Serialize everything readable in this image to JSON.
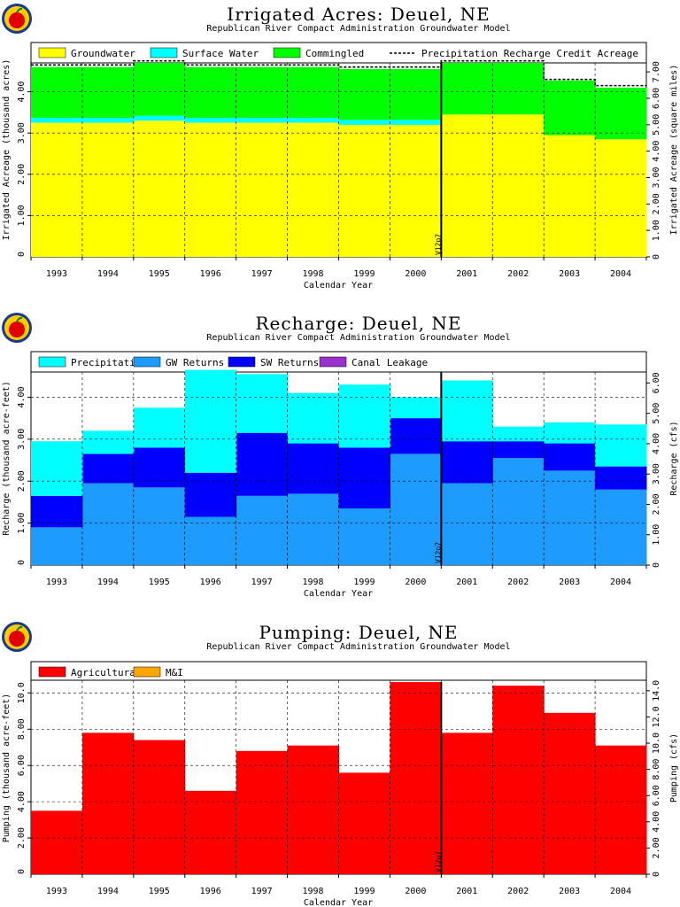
{
  "logo_icon": "apple-logo-icon",
  "charts": [
    {
      "title": "Irrigated Acres: Deuel, NE",
      "subtitle": "Republican River Compact Administration Groundwater Model",
      "xlabel": "Calendar Year",
      "ylabel": "Irrigated Acreage (thousand acres)",
      "ylabel_right": "Irrigated Acreage (square miles)",
      "marker_label": "V12p7",
      "legend": [
        "Groundwater",
        "Surface Water",
        "Commingled",
        "Precipitation Recharge Credit Acreage"
      ]
    },
    {
      "title": "Recharge: Deuel, NE",
      "subtitle": "Republican River Compact Administration Groundwater Model",
      "xlabel": "Calendar Year",
      "ylabel": "Recharge (thousand acre-feet)",
      "ylabel_right": "Recharge (cfs)",
      "marker_label": "V12p7",
      "legend": [
        "Precipitation",
        "GW Returns",
        "SW Returns",
        "Canal Leakage"
      ]
    },
    {
      "title": "Pumping: Deuel, NE",
      "subtitle": "Republican River Compact Administration Groundwater Model",
      "xlabel": "Calendar Year",
      "ylabel": "Pumping (thousand acre-feet)",
      "ylabel_right": "Pumping (cfs)",
      "marker_label": "V12p7",
      "legend": [
        "Agricultural",
        "M&I"
      ]
    }
  ],
  "chart_data": [
    {
      "type": "area",
      "stacked": true,
      "title": "Irrigated Acres: Deuel, NE",
      "subtitle": "Republican River Compact Administration Groundwater Model",
      "xlabel": "Calendar Year",
      "ylabel": "Irrigated Acreage (thousand acres)",
      "ylabel_right": "Irrigated Acreage (square miles)",
      "categories": [
        "1993",
        "1994",
        "1995",
        "1996",
        "1997",
        "1998",
        "1999",
        "2000",
        "2001",
        "2002",
        "2003",
        "2004"
      ],
      "ylim": [
        0,
        4.7
      ],
      "yticks": [
        "1.00",
        "2.00",
        "3.00",
        "4.00"
      ],
      "y2lim": [
        0,
        7.34
      ],
      "y2ticks": [
        "0",
        "1.00",
        "2.00",
        "3.00",
        "4.00",
        "5.00",
        "6.00",
        "7.00"
      ],
      "grid": true,
      "legend_position": "top",
      "colors": {
        "groundwater": "#ffff00",
        "surface_water": "#00ffff",
        "commingled": "#00ff00",
        "precip": "#000000"
      },
      "series": [
        {
          "name": "Groundwater",
          "values": [
            3.25,
            3.25,
            3.3,
            3.25,
            3.25,
            3.25,
            3.2,
            3.2,
            3.45,
            3.45,
            2.95,
            2.85
          ]
        },
        {
          "name": "Surface Water",
          "values": [
            0.12,
            0.12,
            0.12,
            0.12,
            0.12,
            0.12,
            0.12,
            0.12,
            0,
            0,
            0,
            0
          ]
        },
        {
          "name": "Commingled",
          "values": [
            1.23,
            1.23,
            1.28,
            1.23,
            1.23,
            1.23,
            1.23,
            1.23,
            1.25,
            1.25,
            1.32,
            1.25
          ]
        },
        {
          "name": "Precipitation Recharge Credit Acreage",
          "values": [
            4.65,
            4.65,
            4.75,
            4.65,
            4.65,
            4.65,
            4.6,
            4.6,
            4.75,
            4.75,
            4.3,
            4.15
          ]
        }
      ],
      "marker_year": "2001",
      "marker_label": "V12p7"
    },
    {
      "type": "area",
      "stacked": true,
      "title": "Recharge: Deuel, NE",
      "subtitle": "Republican River Compact Administration Groundwater Model",
      "xlabel": "Calendar Year",
      "ylabel": "Recharge (thousand acre-feet)",
      "ylabel_right": "Recharge (cfs)",
      "categories": [
        "1993",
        "1994",
        "1995",
        "1996",
        "1997",
        "1998",
        "1999",
        "2000",
        "2001",
        "2002",
        "2003",
        "2004"
      ],
      "ylim": [
        0,
        4.6
      ],
      "yticks": [
        "1.00",
        "2.00",
        "3.00",
        "4.00"
      ],
      "y2lim": [
        0,
        6.36
      ],
      "y2ticks": [
        "0",
        "1.00",
        "2.00",
        "3.00",
        "4.00",
        "5.00",
        "6.00"
      ],
      "grid": true,
      "legend_position": "top",
      "colors": {
        "precipitation": "#00ffff",
        "gw_returns": "#1e9bff",
        "sw_returns": "#0000ff",
        "canal_leakage": "#9932cc"
      },
      "series": [
        {
          "name": "Precipitation",
          "values": [
            1.3,
            0.55,
            0.95,
            2.45,
            1.4,
            1.2,
            1.5,
            0.5,
            1.45,
            0.35,
            0.5,
            1.0
          ]
        },
        {
          "name": "GW Returns",
          "values": [
            0.9,
            1.95,
            1.85,
            1.15,
            1.65,
            1.7,
            1.35,
            2.65,
            1.95,
            2.55,
            2.25,
            1.8
          ]
        },
        {
          "name": "SW Returns",
          "values": [
            0.75,
            0.7,
            0.95,
            1.05,
            1.5,
            1.2,
            1.45,
            0.85,
            1.0,
            0.4,
            0.65,
            0.55
          ]
        },
        {
          "name": "Canal Leakage",
          "values": [
            0,
            0,
            0,
            0,
            0,
            0,
            0,
            0,
            0,
            0,
            0,
            0
          ]
        }
      ],
      "marker_year": "2001",
      "marker_label": "V12p7"
    },
    {
      "type": "area",
      "stacked": true,
      "title": "Pumping: Deuel, NE",
      "subtitle": "Republican River Compact Administration Groundwater Model",
      "xlabel": "Calendar Year",
      "ylabel": "Pumping (thousand acre-feet)",
      "ylabel_right": "Pumping (cfs)",
      "categories": [
        "1993",
        "1994",
        "1995",
        "1996",
        "1997",
        "1998",
        "1999",
        "2000",
        "2001",
        "2002",
        "2003",
        "2004"
      ],
      "ylim": [
        0,
        10.7
      ],
      "yticks": [
        "2.00",
        "4.00",
        "6.00",
        "8.00",
        "10.0"
      ],
      "y2lim": [
        0,
        14.8
      ],
      "y2ticks": [
        "0",
        "2.00",
        "4.00",
        "6.00",
        "8.00",
        "10.0",
        "12.0",
        "14.0"
      ],
      "grid": true,
      "legend_position": "top",
      "colors": {
        "agricultural": "#ff0000",
        "mi": "#ffa500"
      },
      "series": [
        {
          "name": "Agricultural",
          "values": [
            3.5,
            7.8,
            7.4,
            4.6,
            6.8,
            7.1,
            5.6,
            10.6,
            7.8,
            10.4,
            8.9,
            7.1
          ]
        },
        {
          "name": "M&I",
          "values": [
            0,
            0,
            0,
            0,
            0,
            0,
            0,
            0,
            0,
            0,
            0,
            0
          ]
        }
      ],
      "marker_year": "2001",
      "marker_label": "V12p7"
    }
  ]
}
